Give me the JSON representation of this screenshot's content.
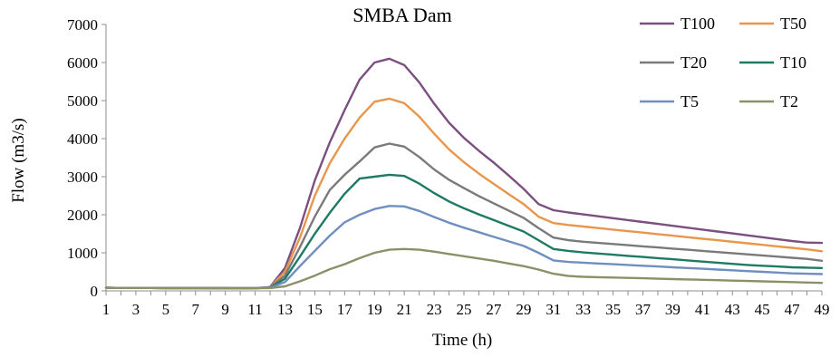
{
  "chart_data": {
    "type": "line",
    "title": "SMBA Dam",
    "xlabel": "Time (h)",
    "ylabel": "Flow (m3/s)",
    "x": [
      1,
      2,
      3,
      4,
      5,
      6,
      7,
      8,
      9,
      10,
      11,
      12,
      13,
      14,
      15,
      16,
      17,
      18,
      19,
      20,
      21,
      22,
      23,
      24,
      25,
      26,
      27,
      28,
      29,
      30,
      31,
      32,
      33,
      34,
      35,
      36,
      37,
      38,
      39,
      40,
      41,
      42,
      43,
      44,
      45,
      46,
      47,
      48,
      49
    ],
    "x_ticks": [
      "1",
      "3",
      "5",
      "7",
      "9",
      "11",
      "13",
      "15",
      "17",
      "19",
      "21",
      "23",
      "25",
      "27",
      "29",
      "31",
      "33",
      "35",
      "37",
      "39",
      "41",
      "43",
      "45",
      "47",
      "49"
    ],
    "xlim": [
      1,
      49
    ],
    "ylim": [
      0,
      7000
    ],
    "y_ticks": [
      "0",
      "1000",
      "2000",
      "3000",
      "4000",
      "5000",
      "6000",
      "7000"
    ],
    "grid": false,
    "legend_position": "top-right",
    "series": [
      {
        "name": "T100",
        "color": "#7B4F7F",
        "values": [
          80,
          78,
          77,
          76,
          75,
          74,
          73,
          72,
          71,
          70,
          70,
          100,
          600,
          1650,
          2900,
          3900,
          4750,
          5550,
          6000,
          6100,
          5930,
          5480,
          4920,
          4420,
          4020,
          3680,
          3370,
          3030,
          2680,
          2280,
          2120,
          2060,
          2010,
          1960,
          1910,
          1860,
          1810,
          1760,
          1710,
          1660,
          1610,
          1560,
          1510,
          1460,
          1410,
          1360,
          1310,
          1270,
          1260
        ]
      },
      {
        "name": "T50",
        "color": "#E8964B",
        "values": [
          80,
          78,
          77,
          76,
          75,
          74,
          73,
          72,
          71,
          70,
          70,
          95,
          500,
          1400,
          2500,
          3350,
          4000,
          4550,
          4970,
          5050,
          4930,
          4580,
          4130,
          3720,
          3380,
          3080,
          2810,
          2540,
          2280,
          1950,
          1780,
          1730,
          1690,
          1650,
          1610,
          1570,
          1530,
          1490,
          1450,
          1410,
          1370,
          1330,
          1290,
          1250,
          1210,
          1170,
          1130,
          1090,
          1040
        ]
      },
      {
        "name": "T20",
        "color": "#7A7A7A",
        "values": [
          80,
          78,
          77,
          76,
          75,
          74,
          73,
          72,
          71,
          70,
          70,
          90,
          400,
          1150,
          1950,
          2650,
          3050,
          3400,
          3770,
          3870,
          3790,
          3520,
          3190,
          2920,
          2700,
          2490,
          2300,
          2110,
          1920,
          1650,
          1400,
          1330,
          1290,
          1260,
          1230,
          1200,
          1170,
          1140,
          1110,
          1080,
          1050,
          1020,
          990,
          960,
          930,
          900,
          870,
          840,
          790
        ]
      },
      {
        "name": "T10",
        "color": "#1E7A63",
        "values": [
          80,
          78,
          77,
          76,
          75,
          74,
          73,
          72,
          71,
          70,
          70,
          85,
          320,
          900,
          1500,
          2050,
          2550,
          2950,
          3000,
          3050,
          3020,
          2820,
          2570,
          2350,
          2170,
          2010,
          1860,
          1710,
          1560,
          1330,
          1100,
          1050,
          1010,
          980,
          950,
          920,
          890,
          860,
          830,
          800,
          770,
          740,
          710,
          680,
          660,
          640,
          620,
          610,
          600
        ]
      },
      {
        "name": "T5",
        "color": "#6E8FBF",
        "values": [
          80,
          78,
          77,
          76,
          75,
          74,
          73,
          72,
          71,
          70,
          70,
          80,
          230,
          650,
          1050,
          1450,
          1800,
          2000,
          2150,
          2230,
          2220,
          2100,
          1940,
          1790,
          1660,
          1540,
          1420,
          1300,
          1180,
          1000,
          800,
          760,
          740,
          720,
          700,
          680,
          660,
          640,
          620,
          600,
          580,
          560,
          540,
          520,
          500,
          480,
          460,
          450,
          440
        ]
      },
      {
        "name": "T2",
        "color": "#8A9167",
        "values": [
          80,
          78,
          77,
          76,
          75,
          74,
          73,
          72,
          71,
          70,
          70,
          75,
          120,
          250,
          400,
          570,
          700,
          860,
          1000,
          1080,
          1100,
          1080,
          1030,
          970,
          910,
          850,
          790,
          720,
          650,
          560,
          450,
          390,
          370,
          360,
          350,
          340,
          330,
          320,
          310,
          300,
          290,
          280,
          270,
          260,
          250,
          240,
          230,
          220,
          210
        ]
      }
    ]
  }
}
